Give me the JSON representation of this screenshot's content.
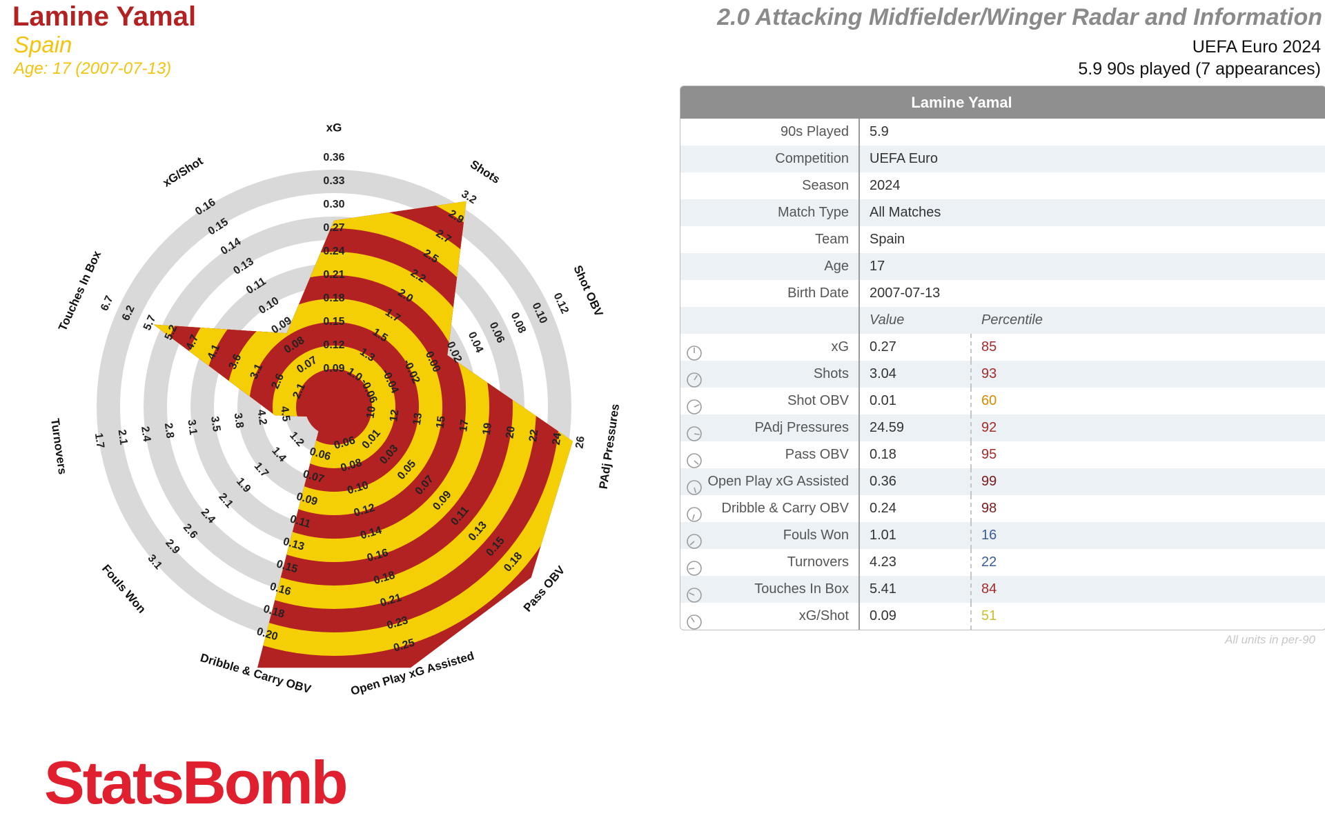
{
  "header": {
    "player_name": "Lamine Yamal",
    "team": "Spain",
    "age_line": "Age: 17 (2007-07-13)",
    "report_title": "2.0 Attacking Midfielder/Winger Radar and Information",
    "competition": "UEFA Euro 2024",
    "played": "5.9 90s played (7 appearances)"
  },
  "info_table": {
    "title": "Lamine Yamal",
    "rows": [
      {
        "label": "90s Played",
        "value": "5.9"
      },
      {
        "label": "Competition",
        "value": "UEFA Euro"
      },
      {
        "label": "Season",
        "value": "2024"
      },
      {
        "label": "Match Type",
        "value": "All Matches"
      },
      {
        "label": "Team",
        "value": "Spain"
      },
      {
        "label": "Age",
        "value": "17"
      },
      {
        "label": "Birth Date",
        "value": "2007-07-13"
      }
    ],
    "value_header": "Value",
    "percentile_header": "Percentile",
    "metrics": [
      {
        "label": "xG",
        "value": "0.27",
        "percentile": "85",
        "color": "#a52a2a"
      },
      {
        "label": "Shots",
        "value": "3.04",
        "percentile": "93",
        "color": "#a52a2a"
      },
      {
        "label": "Shot OBV",
        "value": "0.01",
        "percentile": "60",
        "color": "#d98a00"
      },
      {
        "label": "PAdj Pressures",
        "value": "24.59",
        "percentile": "92",
        "color": "#a52a2a"
      },
      {
        "label": "Pass OBV",
        "value": "0.18",
        "percentile": "95",
        "color": "#a52a2a"
      },
      {
        "label": "Open Play xG Assisted",
        "value": "0.36",
        "percentile": "99",
        "color": "#7a1a1a"
      },
      {
        "label": "Dribble & Carry OBV",
        "value": "0.24",
        "percentile": "98",
        "color": "#7a1a1a"
      },
      {
        "label": "Fouls Won",
        "value": "1.01",
        "percentile": "16",
        "color": "#3a5a9a"
      },
      {
        "label": "Turnovers",
        "value": "4.23",
        "percentile": "22",
        "color": "#3a5a9a"
      },
      {
        "label": "Touches In Box",
        "value": "5.41",
        "percentile": "84",
        "color": "#a52a2a"
      },
      {
        "label": "xG/Shot",
        "value": "0.09",
        "percentile": "51",
        "color": "#c8c030"
      }
    ],
    "units_note": "All units in per-90"
  },
  "brand": "StatsBomb",
  "chart_data": {
    "type": "radar",
    "fill_colors": [
      "#b22222",
      "#f5cf05"
    ],
    "ring_color": "#d9d9d9",
    "axes": [
      {
        "label": "xG",
        "value": 0.27,
        "ticks": [
          "0.09",
          "0.12",
          "0.15",
          "0.18",
          "0.21",
          "0.24",
          "0.27",
          "0.30",
          "0.33",
          "0.36"
        ]
      },
      {
        "label": "Shots",
        "value": 3.04,
        "ticks": [
          "1.0",
          "1.3",
          "1.5",
          "1.7",
          "2.0",
          "2.2",
          "2.5",
          "2.7",
          "2.9",
          "3.2"
        ]
      },
      {
        "label": "Shot OBV",
        "value": 0.01,
        "ticks": [
          "-0.06",
          "-0.04",
          "-0.02",
          "0.00",
          "0.02",
          "0.04",
          "0.06",
          "0.08",
          "0.10",
          "0.12"
        ]
      },
      {
        "label": "PAdj Pressures",
        "value": 24.59,
        "ticks": [
          "10",
          "12",
          "13",
          "15",
          "17",
          "19",
          "20",
          "22",
          "24",
          "26"
        ]
      },
      {
        "label": "Pass OBV",
        "value": 0.18,
        "ticks": [
          "0.01",
          "0.03",
          "0.05",
          "0.07",
          "0.09",
          "0.11",
          "0.13",
          "0.15",
          "0.18"
        ]
      },
      {
        "label": "Open Play xG Assisted",
        "value": 0.36,
        "ticks": [
          "0.06",
          "0.08",
          "0.10",
          "0.12",
          "0.14",
          "0.16",
          "0.18",
          "0.21",
          "0.23",
          "0.25"
        ]
      },
      {
        "label": "Dribble & Carry OBV",
        "value": 0.24,
        "ticks": [
          "0.06",
          "0.07",
          "0.09",
          "0.11",
          "0.13",
          "0.15",
          "0.16",
          "0.18",
          "0.20"
        ]
      },
      {
        "label": "Fouls Won",
        "value": 1.01,
        "ticks": [
          "1.2",
          "1.4",
          "1.7",
          "1.9",
          "2.1",
          "2.4",
          "2.6",
          "2.9",
          "3.1"
        ]
      },
      {
        "label": "Turnovers",
        "value": 4.23,
        "ticks": [
          "4.5",
          "4.2",
          "3.8",
          "3.5",
          "3.1",
          "2.8",
          "2.4",
          "2.1",
          "1.7"
        ]
      },
      {
        "label": "Touches In Box",
        "value": 5.41,
        "ticks": [
          "2.1",
          "2.6",
          "3.1",
          "3.6",
          "4.1",
          "4.7",
          "5.2",
          "5.7",
          "6.2",
          "6.7"
        ]
      },
      {
        "label": "xG/Shot",
        "value": 0.09,
        "ticks": [
          "0.07",
          "0.08",
          "0.09",
          "0.10",
          "0.11",
          "0.13",
          "0.14",
          "0.15",
          "0.16"
        ]
      }
    ],
    "grid": true
  }
}
